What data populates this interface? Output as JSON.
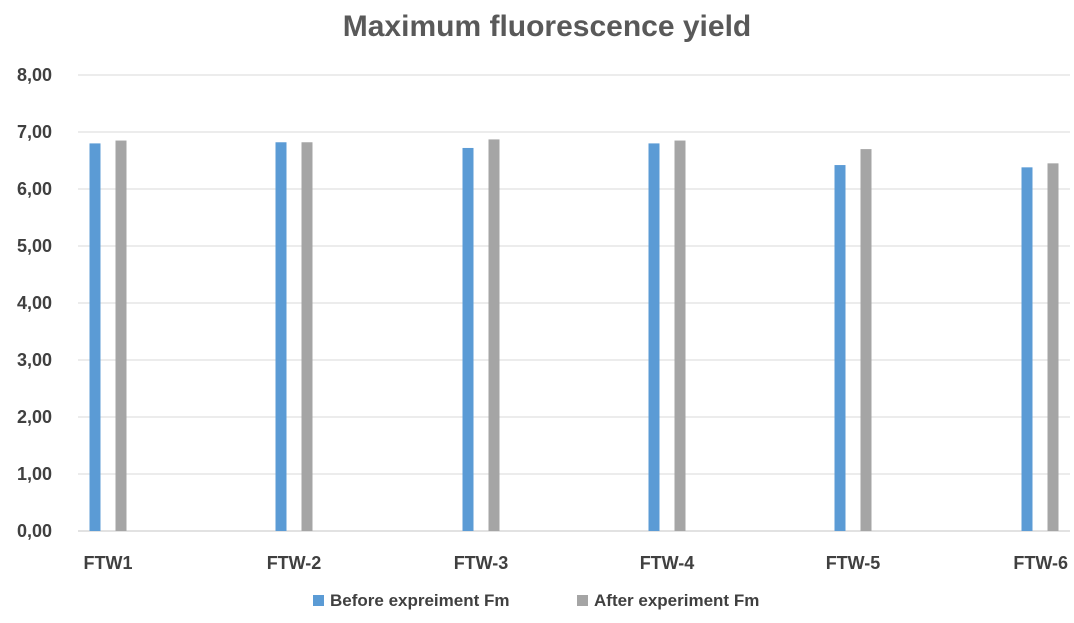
{
  "chart_data": {
    "type": "bar",
    "title": "Maximum fluorescence yield",
    "xlabel": "",
    "ylabel": "",
    "categories": [
      "FTW1",
      "FTW-2",
      "FTW-3",
      "FTW-4",
      "FTW-5",
      "FTW-6"
    ],
    "series": [
      {
        "name": "Before expreiment Fm",
        "color": "#5b9bd5",
        "values": [
          6.8,
          6.82,
          6.72,
          6.8,
          6.42,
          6.38
        ]
      },
      {
        "name": "After experiment Fm",
        "color": "#a5a5a5",
        "values": [
          6.85,
          6.82,
          6.87,
          6.85,
          6.7,
          6.45
        ]
      }
    ],
    "ylim": [
      0,
      8
    ],
    "yticks": [
      "0,00",
      "1,00",
      "2,00",
      "3,00",
      "4,00",
      "5,00",
      "6,00",
      "7,00",
      "8,00"
    ],
    "grid": true,
    "legend_position": "bottom"
  }
}
